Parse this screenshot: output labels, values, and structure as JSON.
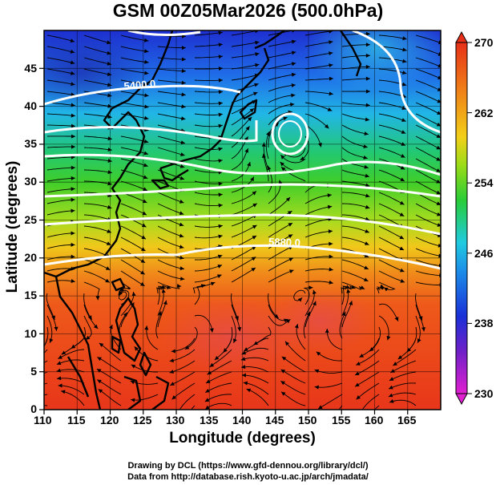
{
  "title": "GSM 00Z05Mar2026 (500.0hPa)",
  "axes": {
    "xlabel": "Longitude (degrees)",
    "ylabel": "Latitude  (degrees)",
    "x_ticks": [
      "110",
      "115",
      "120",
      "125",
      "130",
      "135",
      "140",
      "145",
      "150",
      "155",
      "160",
      "165"
    ],
    "y_ticks": [
      "0",
      "5",
      "10",
      "15",
      "20",
      "25",
      "30",
      "35",
      "40",
      "45"
    ]
  },
  "colorbar": {
    "labels": [
      "230",
      "238",
      "246",
      "254",
      "262",
      "270"
    ],
    "min": 230,
    "max": 270
  },
  "contour_labels": [
    "5400.0",
    "5880.0"
  ],
  "credits": {
    "line1": "Drawing by DCL (https://www.gfd-dennou.org/library/dcl/)",
    "line2": "Data from http://database.rish.kyoto-u.ac.jp/arch/jmadata/"
  },
  "map": {
    "lon_range": [
      110,
      170
    ],
    "lat_range": [
      0,
      50
    ],
    "field": "temperature (K)",
    "contour_field": "geopotential height (m)",
    "colors": {
      "warm": "#e8321e",
      "cold": "#1c3cd8",
      "land": "#000000",
      "contour": "#ffffff"
    }
  }
}
